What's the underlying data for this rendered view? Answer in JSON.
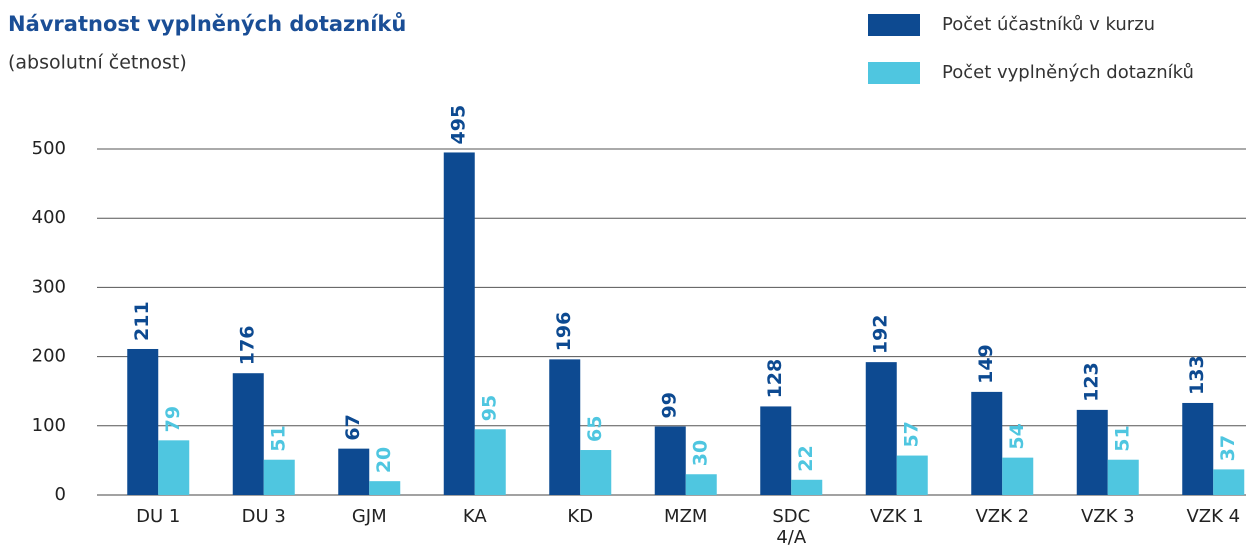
{
  "chart_data": {
    "type": "bar",
    "title": "Návratnost vyplněných dotazníků",
    "subtitle": "(absolutní četnost)",
    "categories": [
      "DU 1",
      "DU 3",
      "GJM",
      "KA",
      "KD",
      "MZM",
      "SDC 4/A",
      "VZK 1",
      "VZK 2",
      "VZK 3",
      "VZK 4"
    ],
    "series": [
      {
        "name": "Počet účastníků v kurzu",
        "color": "#0d4a91",
        "values": [
          211,
          176,
          67,
          495,
          196,
          99,
          128,
          192,
          149,
          123,
          133
        ]
      },
      {
        "name": "Počet vyplněných dotazníků",
        "color": "#4fc6e0",
        "values": [
          79,
          51,
          20,
          95,
          65,
          30,
          22,
          57,
          54,
          51,
          37
        ]
      }
    ],
    "ylim": [
      0,
      500
    ],
    "yticks": [
      0,
      100,
      200,
      300,
      400,
      500
    ],
    "grid": true,
    "legend": "top-right"
  }
}
